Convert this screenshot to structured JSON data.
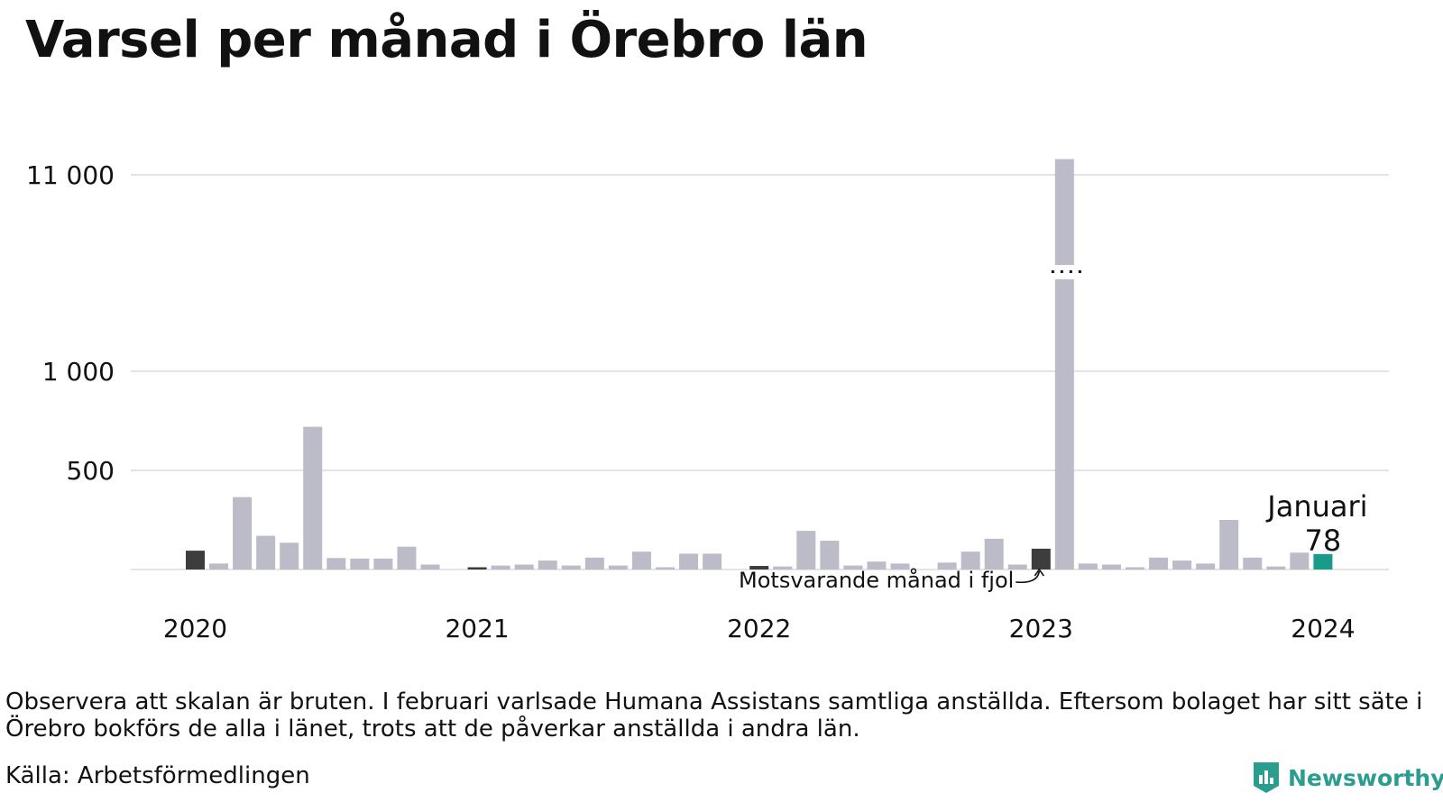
{
  "title": "Varsel per månad i Örebro län",
  "note": "Observera att skalan är bruten. I februari varlsade Humana Assistans samtliga anställda. Eftersom bolaget har sitt säte i Örebro bokförs de alla i länet, trots att de påverkar anställda i andra län.",
  "source": "Källa: Arbetsförmedlingen",
  "brand": {
    "name": "Newsworthy",
    "icon": "newsworthy-logo-icon"
  },
  "colors": {
    "bar": "#bcbbc8",
    "comparison": "#3d3d3d",
    "highlight": "#1a9a8a",
    "grid": "#e3e3e8",
    "brand": "#2a9d8f"
  },
  "chart_data": {
    "type": "bar",
    "broken_scale": true,
    "y_ticks": [
      {
        "value": 500,
        "label": "500"
      },
      {
        "value": 1000,
        "label": "1 000"
      },
      {
        "value": 11000,
        "label": "11 000"
      }
    ],
    "x_year_labels": [
      "2020",
      "2021",
      "2022",
      "2023",
      "2024"
    ],
    "months": [
      "2020-01",
      "2020-02",
      "2020-03",
      "2020-04",
      "2020-05",
      "2020-06",
      "2020-07",
      "2020-08",
      "2020-09",
      "2020-10",
      "2020-11",
      "2020-12",
      "2021-01",
      "2021-02",
      "2021-03",
      "2021-04",
      "2021-05",
      "2021-06",
      "2021-07",
      "2021-08",
      "2021-09",
      "2021-10",
      "2021-11",
      "2021-12",
      "2022-01",
      "2022-02",
      "2022-03",
      "2022-04",
      "2022-05",
      "2022-06",
      "2022-07",
      "2022-08",
      "2022-09",
      "2022-10",
      "2022-11",
      "2022-12",
      "2023-01",
      "2023-02",
      "2023-03",
      "2023-04",
      "2023-05",
      "2023-06",
      "2023-07",
      "2023-08",
      "2023-09",
      "2023-10",
      "2023-11",
      "2023-12",
      "2024-01"
    ],
    "values": [
      95,
      30,
      365,
      170,
      135,
      720,
      58,
      55,
      55,
      115,
      25,
      0,
      10,
      20,
      25,
      45,
      20,
      60,
      20,
      90,
      10,
      80,
      80,
      0,
      18,
      15,
      195,
      145,
      20,
      40,
      30,
      0,
      35,
      90,
      155,
      25,
      105,
      11800,
      30,
      25,
      10,
      60,
      45,
      30,
      250,
      60,
      15,
      85,
      78
    ],
    "highlight_index": 48,
    "comparison_indices": [
      0,
      12,
      24,
      36
    ],
    "annotations": [
      {
        "text": "Januari",
        "value_label": "78"
      },
      {
        "text": "Motsvarande månad i fjol"
      }
    ]
  }
}
